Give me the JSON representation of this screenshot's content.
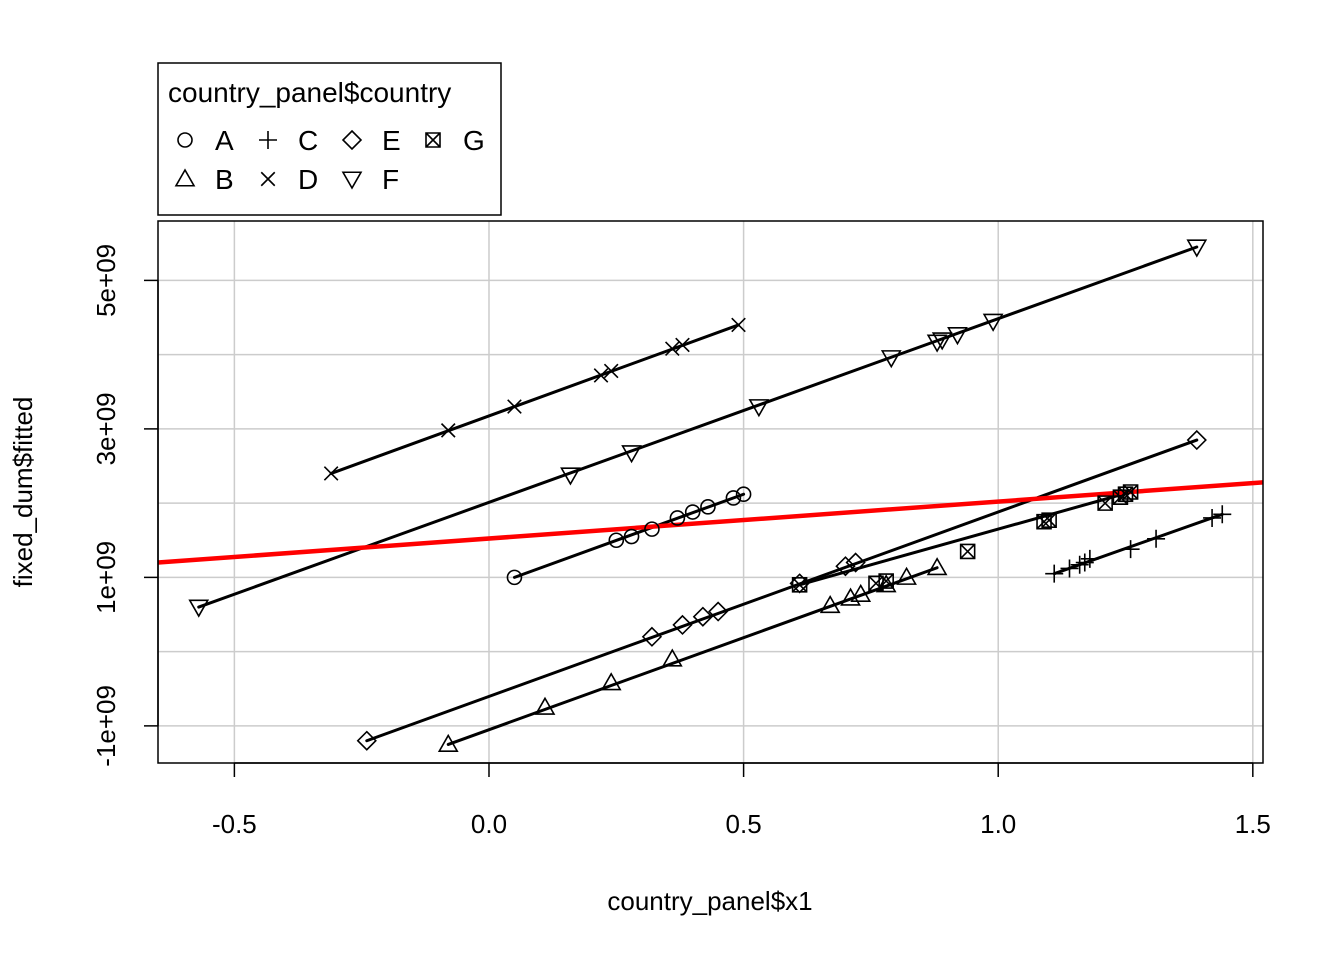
{
  "chart_data": {
    "type": "scatter",
    "xlabel": "country_panel$x1",
    "ylabel": "fixed_dum$fitted",
    "xlim": [
      -0.65,
      1.52
    ],
    "ylim": [
      -1500000000.0,
      5800000000.0
    ],
    "x_ticks": [
      -0.5,
      0.0,
      0.5,
      1.0,
      1.5
    ],
    "x_tick_labels": [
      "-0.5",
      "0.0",
      "0.5",
      "1.0",
      "1.5"
    ],
    "y_ticks": [
      -1000000000.0,
      1000000000.0,
      3000000000.0,
      5000000000.0
    ],
    "y_tick_labels": [
      "-1e+09",
      "1e+09",
      "3e+09",
      "5e+09"
    ],
    "y_grid": [
      -1000000000.0,
      0,
      1000000000.0,
      2000000000.0,
      3000000000.0,
      4000000000.0,
      5000000000.0
    ],
    "grid": true,
    "legend": {
      "title": "country_panel$country",
      "placement": "top-left, outside plot",
      "entries": [
        {
          "label": "A",
          "symbol": "circle"
        },
        {
          "label": "B",
          "symbol": "triangle-up"
        },
        {
          "label": "C",
          "symbol": "plus"
        },
        {
          "label": "D",
          "symbol": "cross"
        },
        {
          "label": "E",
          "symbol": "diamond"
        },
        {
          "label": "F",
          "symbol": "triangle-down"
        },
        {
          "label": "G",
          "symbol": "boxed-cross"
        }
      ]
    },
    "series": [
      {
        "name": "A",
        "symbol": "circle",
        "points": [
          [
            0.05,
            1000000000.0
          ],
          [
            0.25,
            1500000000.0
          ],
          [
            0.28,
            1550000000.0
          ],
          [
            0.32,
            1650000000.0
          ],
          [
            0.37,
            1800000000.0
          ],
          [
            0.4,
            1880000000.0
          ],
          [
            0.43,
            1950000000.0
          ],
          [
            0.48,
            2070000000.0
          ],
          [
            0.5,
            2120000000.0
          ]
        ]
      },
      {
        "name": "B",
        "symbol": "triangle-up",
        "points": [
          [
            -0.08,
            -1250000000.0
          ],
          [
            0.11,
            -750000000.0
          ],
          [
            0.24,
            -420000000.0
          ],
          [
            0.36,
            -100000000.0
          ],
          [
            0.67,
            620000000.0
          ],
          [
            0.71,
            720000000.0
          ],
          [
            0.73,
            770000000.0
          ],
          [
            0.78,
            900000000.0
          ],
          [
            0.82,
            1000000000.0
          ],
          [
            0.88,
            1130000000.0
          ]
        ]
      },
      {
        "name": "C",
        "symbol": "plus",
        "points": [
          [
            1.11,
            1050000000.0
          ],
          [
            1.14,
            1120000000.0
          ],
          [
            1.16,
            1170000000.0
          ],
          [
            1.17,
            1200000000.0
          ],
          [
            1.18,
            1250000000.0
          ],
          [
            1.26,
            1380000000.0
          ],
          [
            1.31,
            1520000000.0
          ],
          [
            1.42,
            1800000000.0
          ],
          [
            1.44,
            1850000000.0
          ]
        ]
      },
      {
        "name": "D",
        "symbol": "cross",
        "points": [
          [
            -0.31,
            2400000000.0
          ],
          [
            -0.08,
            2980000000.0
          ],
          [
            0.05,
            3300000000.0
          ],
          [
            0.22,
            3720000000.0
          ],
          [
            0.24,
            3780000000.0
          ],
          [
            0.36,
            4080000000.0
          ],
          [
            0.38,
            4130000000.0
          ],
          [
            0.49,
            4400000000.0
          ]
        ]
      },
      {
        "name": "E",
        "symbol": "diamond",
        "points": [
          [
            -0.24,
            -1200000000.0
          ],
          [
            0.32,
            200000000.0
          ],
          [
            0.38,
            360000000.0
          ],
          [
            0.42,
            470000000.0
          ],
          [
            0.45,
            540000000.0
          ],
          [
            0.61,
            920000000.0
          ],
          [
            0.7,
            1150000000.0
          ],
          [
            0.72,
            1200000000.0
          ],
          [
            1.39,
            2850000000.0
          ]
        ]
      },
      {
        "name": "F",
        "symbol": "triangle-down",
        "points": [
          [
            -0.57,
            600000000.0
          ],
          [
            0.16,
            2380000000.0
          ],
          [
            0.28,
            2680000000.0
          ],
          [
            0.53,
            3300000000.0
          ],
          [
            0.79,
            3960000000.0
          ],
          [
            0.88,
            4170000000.0
          ],
          [
            0.89,
            4200000000.0
          ],
          [
            0.92,
            4270000000.0
          ],
          [
            0.99,
            4450000000.0
          ],
          [
            1.39,
            5450000000.0
          ]
        ]
      },
      {
        "name": "G",
        "symbol": "boxed-cross",
        "points": [
          [
            0.61,
            900000000.0
          ],
          [
            0.76,
            920000000.0
          ],
          [
            0.78,
            950000000.0
          ],
          [
            0.94,
            1350000000.0
          ],
          [
            1.09,
            1750000000.0
          ],
          [
            1.1,
            1770000000.0
          ],
          [
            1.21,
            2000000000.0
          ],
          [
            1.24,
            2080000000.0
          ],
          [
            1.25,
            2120000000.0
          ],
          [
            1.26,
            2150000000.0
          ]
        ]
      }
    ],
    "fit_lines": [
      {
        "group": "A",
        "from": [
          0.05,
          1000000000.0
        ],
        "to": [
          0.5,
          2120000000.0
        ],
        "color": "#000000"
      },
      {
        "group": "B",
        "from": [
          -0.08,
          -1250000000.0
        ],
        "to": [
          0.88,
          1130000000.0
        ],
        "color": "#000000"
      },
      {
        "group": "C",
        "from": [
          1.11,
          1050000000.0
        ],
        "to": [
          1.44,
          1850000000.0
        ],
        "color": "#000000"
      },
      {
        "group": "D",
        "from": [
          -0.31,
          2400000000.0
        ],
        "to": [
          0.49,
          4400000000.0
        ],
        "color": "#000000"
      },
      {
        "group": "E",
        "from": [
          -0.24,
          -1200000000.0
        ],
        "to": [
          1.39,
          2850000000.0
        ],
        "color": "#000000"
      },
      {
        "group": "F",
        "from": [
          -0.57,
          600000000.0
        ],
        "to": [
          1.39,
          5450000000.0
        ],
        "color": "#000000"
      },
      {
        "group": "G",
        "from": [
          0.61,
          900000000.0
        ],
        "to": [
          1.26,
          2150000000.0
        ],
        "color": "#000000"
      }
    ],
    "overall_line": {
      "from": [
        -0.65,
        1200000000.0
      ],
      "to": [
        1.52,
        2280000000.0
      ],
      "color": "#ff0000"
    }
  }
}
